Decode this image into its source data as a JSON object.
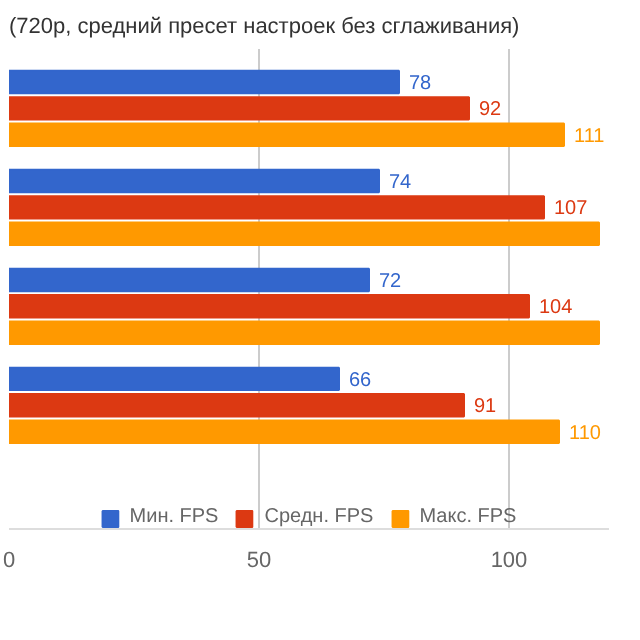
{
  "chart_data": {
    "type": "bar",
    "orientation": "horizontal",
    "title": "(720p, средний пресет настроек без сглаживания)",
    "categories": [
      null,
      null,
      null,
      null
    ],
    "series": [
      {
        "name": "Мин. FPS",
        "color": "#3366cc",
        "values": [
          78,
          74,
          72,
          66
        ],
        "value_labels": [
          "78",
          "74",
          "72",
          "66"
        ]
      },
      {
        "name": "Средн. FPS",
        "color": "#dc3912",
        "values": [
          92,
          107,
          104,
          91
        ],
        "value_labels": [
          "92",
          "107",
          "104",
          "91"
        ]
      },
      {
        "name": "Макс. FPS",
        "color": "#ff9900",
        "values": [
          111,
          118,
          118,
          110
        ],
        "value_labels": [
          "111",
          null,
          null,
          "110"
        ]
      }
    ],
    "xlim": [
      0,
      120
    ],
    "xticks": [
      0,
      50,
      100
    ],
    "grid": "x",
    "legend": "bottom"
  }
}
